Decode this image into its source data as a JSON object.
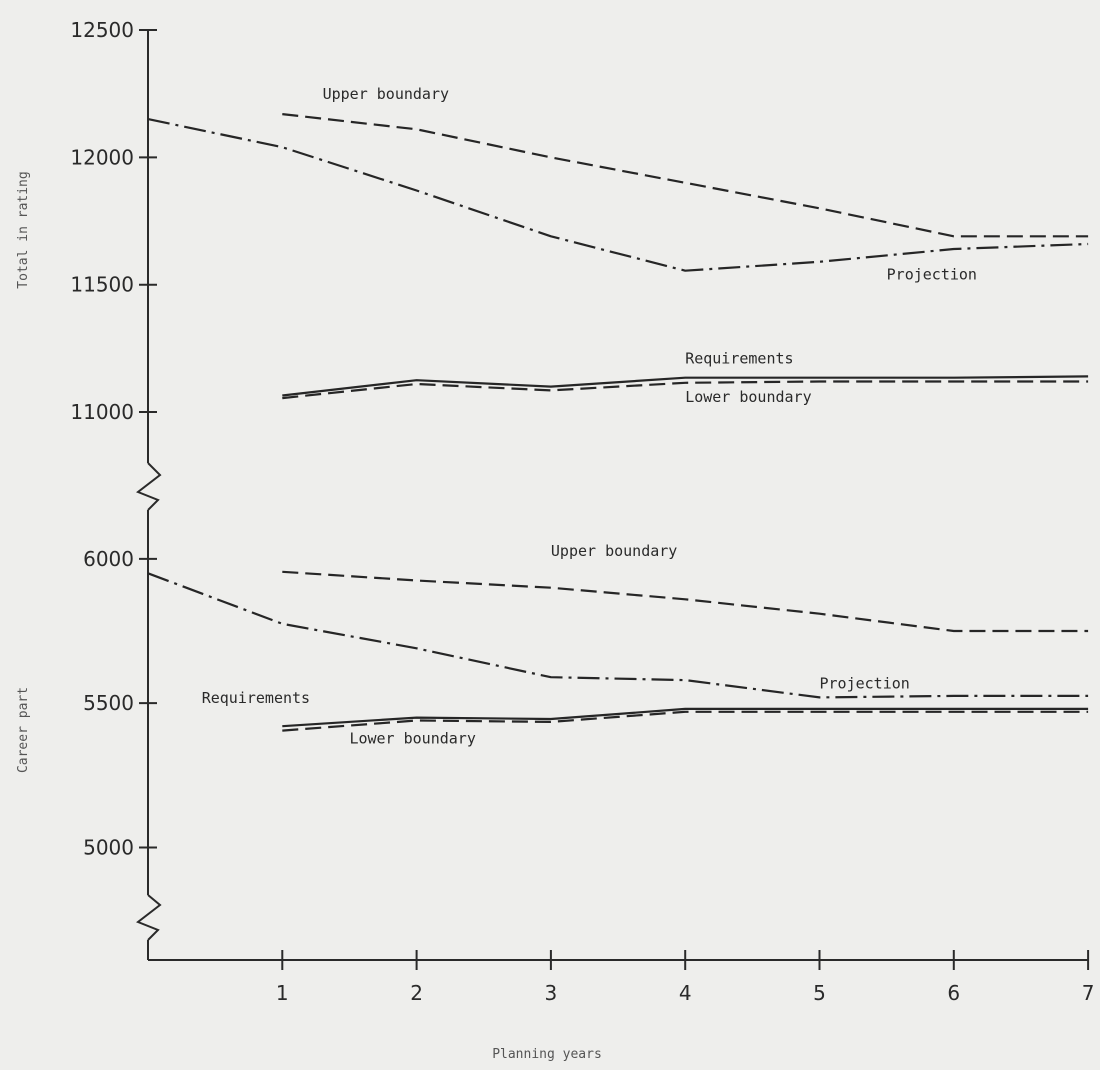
{
  "chart_data": {
    "type": "line",
    "xlabel": "Planning years",
    "x_ticks": [
      "1",
      "2",
      "3",
      "4",
      "5",
      "6",
      "7"
    ],
    "xlim": [
      0,
      7
    ],
    "grid": false,
    "legend": "none",
    "panels": [
      {
        "ylabel": "Total in rating",
        "ylim": [
          10800,
          12500
        ],
        "y_ticks": [
          11000,
          11500,
          12000,
          12500
        ],
        "series": [
          {
            "name": "Upper boundary",
            "style": "dashed",
            "points": [
              [
                1,
                12170
              ],
              [
                2,
                12110
              ],
              [
                3,
                12000
              ],
              [
                4,
                11900
              ],
              [
                5,
                11800
              ],
              [
                6,
                11690
              ],
              [
                7,
                11690
              ]
            ]
          },
          {
            "name": "Projection",
            "style": "dash-dot",
            "points": [
              [
                0,
                12150
              ],
              [
                1,
                12040
              ],
              [
                2,
                11870
              ],
              [
                3,
                11690
              ],
              [
                4,
                11555
              ],
              [
                5,
                11590
              ],
              [
                6,
                11640
              ],
              [
                7,
                11660
              ]
            ]
          },
          {
            "name": "Requirements",
            "style": "solid",
            "points": [
              [
                1,
                11065
              ],
              [
                2,
                11125
              ],
              [
                3,
                11100
              ],
              [
                4,
                11135
              ],
              [
                5,
                11135
              ],
              [
                6,
                11135
              ],
              [
                7,
                11140
              ]
            ]
          },
          {
            "name": "Lower boundary",
            "style": "dashed",
            "points": [
              [
                1,
                11055
              ],
              [
                2,
                11110
              ],
              [
                3,
                11085
              ],
              [
                4,
                11115
              ],
              [
                5,
                11120
              ],
              [
                6,
                11120
              ],
              [
                7,
                11120
              ]
            ]
          }
        ]
      },
      {
        "ylabel": "Career part",
        "ylim": [
          4610,
          6100
        ],
        "y_ticks": [
          5000,
          5500,
          6000
        ],
        "series": [
          {
            "name": "Upper boundary",
            "style": "dashed",
            "points": [
              [
                1,
                5955
              ],
              [
                2,
                5925
              ],
              [
                3,
                5900
              ],
              [
                4,
                5860
              ],
              [
                5,
                5810
              ],
              [
                6,
                5750
              ],
              [
                7,
                5750
              ]
            ]
          },
          {
            "name": "Projection",
            "style": "dash-dot",
            "points": [
              [
                0,
                5950
              ],
              [
                1,
                5775
              ],
              [
                2,
                5690
              ],
              [
                3,
                5590
              ],
              [
                4,
                5580
              ],
              [
                5,
                5520
              ],
              [
                6,
                5525
              ],
              [
                7,
                5525
              ]
            ]
          },
          {
            "name": "Requirements",
            "style": "solid",
            "points": [
              [
                1,
                5420
              ],
              [
                2,
                5450
              ],
              [
                3,
                5445
              ],
              [
                4,
                5480
              ],
              [
                5,
                5480
              ],
              [
                6,
                5480
              ],
              [
                7,
                5480
              ]
            ]
          },
          {
            "name": "Lower boundary",
            "style": "dashed",
            "points": [
              [
                1,
                5405
              ],
              [
                2,
                5440
              ],
              [
                3,
                5435
              ],
              [
                4,
                5470
              ],
              [
                5,
                5470
              ],
              [
                6,
                5470
              ],
              [
                7,
                5470
              ]
            ]
          }
        ]
      }
    ],
    "annotations": [
      {
        "panel": 0,
        "series": 0,
        "text": "Upper boundary",
        "x": 1.3,
        "y": 12230
      },
      {
        "panel": 0,
        "series": 1,
        "text": "Projection",
        "x": 5.5,
        "y": 11520
      },
      {
        "panel": 0,
        "series": 2,
        "text": "Requirements",
        "x": 4.0,
        "y": 11190
      },
      {
        "panel": 0,
        "series": 3,
        "text": "Lower boundary",
        "x": 4.0,
        "y": 11040
      },
      {
        "panel": 1,
        "series": 0,
        "text": "Upper boundary",
        "x": 3.0,
        "y": 6010
      },
      {
        "panel": 1,
        "series": 1,
        "text": "Projection",
        "x": 5.0,
        "y": 5550
      },
      {
        "panel": 1,
        "series": 2,
        "text": "Requirements",
        "x": 0.4,
        "y": 5500
      },
      {
        "panel": 1,
        "series": 3,
        "text": "Lower boundary",
        "x": 1.5,
        "y": 5360
      }
    ]
  }
}
